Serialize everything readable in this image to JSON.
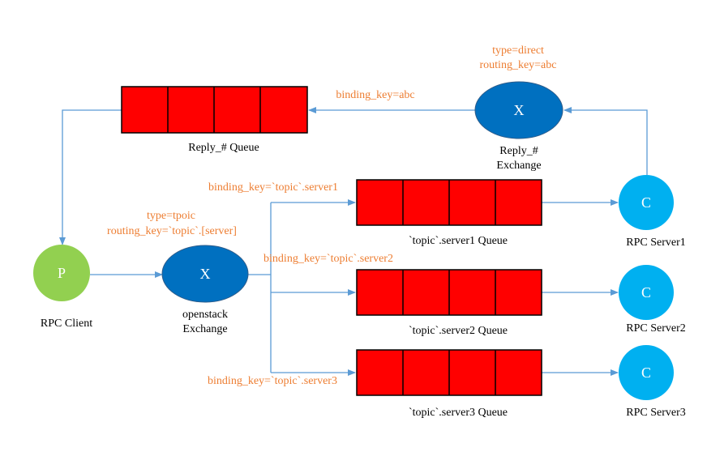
{
  "colors": {
    "line": "#5B9BD5",
    "queue_fill": "#FF0000",
    "queue_border": "#000000",
    "exchange": "#0070C0",
    "client": "#92D050",
    "server": "#00B0F0",
    "annotation": "#ED7D31"
  },
  "reply_queue": {
    "label": "Reply_# Queue"
  },
  "reply_exchange": {
    "symbol": "X",
    "label_line1": "Reply_#",
    "label_line2": "Exchange"
  },
  "reply_exchange_props": {
    "line1": "type=direct",
    "line2": "routing_key=abc"
  },
  "reply_binding": "binding_key=abc",
  "client": {
    "symbol": "P",
    "label": "RPC Client"
  },
  "openstack_exchange": {
    "symbol": "X",
    "label_line1": "openstack",
    "label_line2": "Exchange"
  },
  "openstack_exchange_props": {
    "line1": "type=tpoic",
    "line2": "routing_key=`topic`.[server]"
  },
  "queues": [
    {
      "label": "`topic`.server1 Queue",
      "binding": "binding_key=`topic`.server1"
    },
    {
      "label": "`topic`.server2 Queue",
      "binding": "binding_key=`topic`.server2"
    },
    {
      "label": "`topic`.server3 Queue",
      "binding": "binding_key=`topic`.server3"
    }
  ],
  "servers": [
    {
      "symbol": "C",
      "label": "RPC Server1"
    },
    {
      "symbol": "C",
      "label": "RPC Server2"
    },
    {
      "symbol": "C",
      "label": "RPC Server3"
    }
  ]
}
